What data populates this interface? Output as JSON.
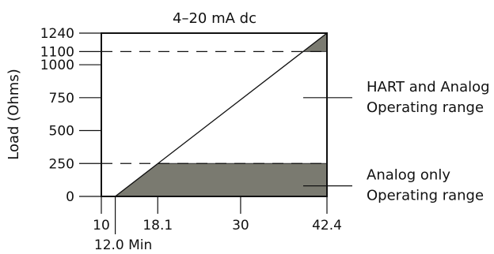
{
  "chart_data": {
    "type": "area",
    "title": "4–20 mA dc",
    "xlabel": "",
    "ylabel": "Load (Ohms)",
    "xlim": [
      10,
      42.4
    ],
    "ylim": [
      0,
      1240
    ],
    "x_ticks": [
      {
        "value": 10,
        "label": "10"
      },
      {
        "value": 18.1,
        "label": "18.1"
      },
      {
        "value": 30,
        "label": "30"
      },
      {
        "value": 42.4,
        "label": "42.4"
      }
    ],
    "x_annotations": [
      {
        "value": 12.0,
        "label": "12.0 Min"
      }
    ],
    "y_ticks": [
      {
        "value": 0,
        "label": "0"
      },
      {
        "value": 250,
        "label": "250"
      },
      {
        "value": 500,
        "label": "500"
      },
      {
        "value": 750,
        "label": "750"
      },
      {
        "value": 1000,
        "label": "1000"
      },
      {
        "value": 1100,
        "label": "1100"
      },
      {
        "value": 1240,
        "label": "1240"
      }
    ],
    "dashed_lines": [
      {
        "y": 1100
      },
      {
        "y": 250
      }
    ],
    "load_line": {
      "x": [
        12.0,
        42.4
      ],
      "y": [
        0,
        1240
      ]
    },
    "regions": [
      {
        "name": "hart_shaded",
        "fill": "#7a7a70",
        "points": [
          [
            38.97,
            1100
          ],
          [
            42.4,
            1100
          ],
          [
            42.4,
            1240
          ]
        ]
      },
      {
        "name": "analog_shaded",
        "fill": "#7a7a70",
        "points": [
          [
            12.0,
            0
          ],
          [
            42.4,
            0
          ],
          [
            42.4,
            250
          ],
          [
            18.13,
            250
          ]
        ]
      }
    ],
    "annotations": [
      {
        "lines": [
          "HART and Analog",
          "Operating range"
        ],
        "leader_y": 750
      },
      {
        "lines": [
          "Analog only",
          "Operating range"
        ],
        "leader_y": 80
      }
    ]
  }
}
